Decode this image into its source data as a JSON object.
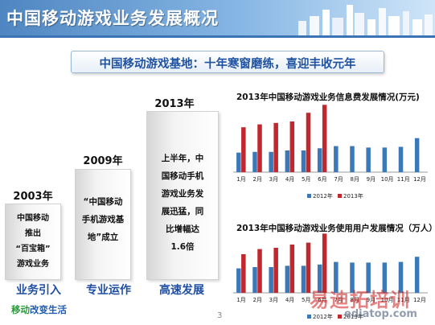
{
  "header": {
    "title": "中国移动游戏业务发展概况"
  },
  "subtitle": "中国移动游戏基地：十年寒窗磨练，喜迎丰收元年",
  "stages": [
    {
      "year": "2003年",
      "text": "中国移动\n推出\n“百宝箱”\n游戏业务",
      "phase": "业务引入"
    },
    {
      "year": "2009年",
      "text": "“中国移动\n手机游戏基\n地”成立",
      "phase": "专业运作"
    },
    {
      "year": "2013年",
      "text": "上半年，中\n国移动手机\n游戏业务发\n展迅猛，同\n比增幅达\n1.6倍",
      "phase": "高速发展"
    }
  ],
  "footer": {
    "slogan_a": "移动",
    "slogan_b": "改变生活",
    "page_number": "3"
  },
  "watermark": {
    "text": "易迪拓培训",
    "url": "ediatop.com"
  },
  "colors": {
    "series_2012": "#3b78b8",
    "series_2013": "#c1272d"
  },
  "chart_data": [
    {
      "type": "bar",
      "title": "2013年中国移动游戏业务信息费发展情况(万元)",
      "categories": [
        "1月",
        "2月",
        "3月",
        "4月",
        "5月",
        "6月",
        "7月",
        "8月",
        "9月",
        "10月",
        "11月",
        "12月"
      ],
      "series": [
        {
          "name": "2012年",
          "values": [
            27,
            28,
            28,
            30,
            30,
            33,
            36,
            36,
            34,
            34,
            35,
            47
          ]
        },
        {
          "name": "2013年",
          "values": [
            62,
            66,
            68,
            70,
            82,
            93,
            null,
            null,
            null,
            null,
            null,
            null
          ]
        }
      ],
      "ylim": [
        0,
        100
      ],
      "legend": "bottom"
    },
    {
      "type": "bar",
      "title": "2013年中国移动游戏业务使用用户发展情况（万人）",
      "categories": [
        "1月",
        "2月",
        "3月",
        "4月",
        "5月",
        "6月",
        "7月",
        "8月",
        "9月",
        "10月",
        "11月",
        "12月"
      ],
      "series": [
        {
          "name": "2012年",
          "values": [
            38,
            40,
            40,
            42,
            42,
            44,
            48,
            47,
            47,
            47,
            48,
            56
          ]
        },
        {
          "name": "2013年",
          "values": [
            60,
            68,
            70,
            75,
            78,
            92,
            null,
            null,
            null,
            null,
            null,
            null
          ]
        }
      ],
      "ylim": [
        0,
        100
      ],
      "legend": "bottom"
    }
  ]
}
